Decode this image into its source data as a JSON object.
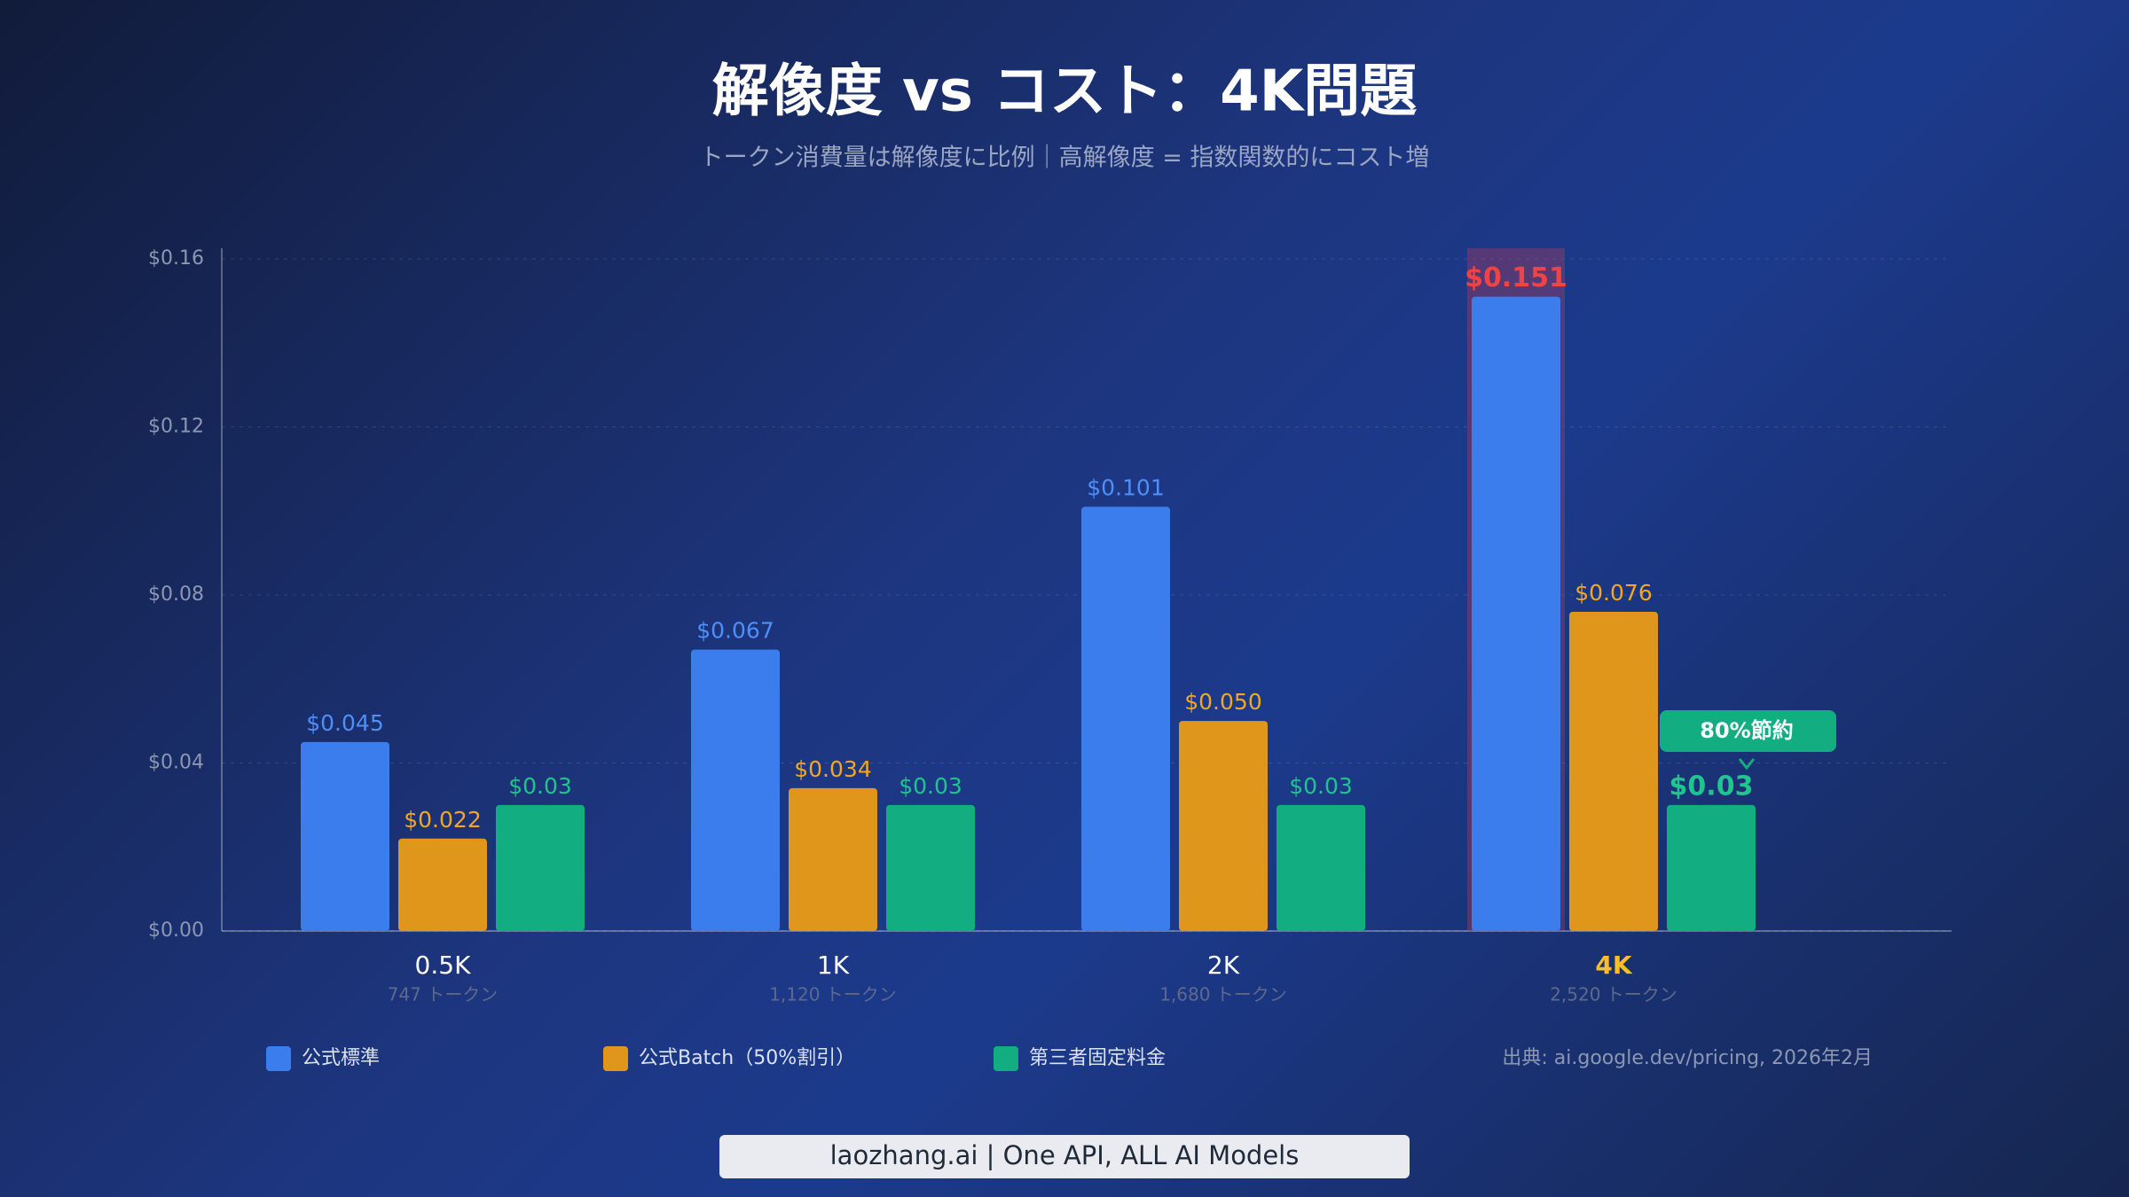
{
  "chart_data": {
    "type": "bar",
    "title": "解像度 vs コスト：4K問題",
    "subtitle": "トークン消費量は解像度に比例｜高解像度 = 指数関数的にコスト増",
    "categories": [
      "0.5K",
      "1K",
      "2K",
      "4K"
    ],
    "category_notes": [
      "747 トークン",
      "1,120 トークン",
      "1,680 トークン",
      "2,520 トークン"
    ],
    "series": [
      {
        "name": "公式標準",
        "color": "#3b7ded",
        "label_color": "#4f8ff7",
        "values": [
          0.045,
          0.067,
          0.101,
          0.151
        ],
        "value_labels": [
          "$0.045",
          "$0.067",
          "$0.101",
          "$0.151"
        ]
      },
      {
        "name": "公式Batch（50%割引）",
        "color": "#e0961a",
        "label_color": "#f5a623",
        "values": [
          0.022,
          0.034,
          0.05,
          0.076
        ],
        "value_labels": [
          "$0.022",
          "$0.034",
          "$0.050",
          "$0.076"
        ]
      },
      {
        "name": "第三者固定料金",
        "color": "#13ad82",
        "label_color": "#1fc48f",
        "values": [
          0.03,
          0.03,
          0.03,
          0.03
        ],
        "value_labels": [
          "$0.03",
          "$0.03",
          "$0.03",
          "$0.03"
        ]
      }
    ],
    "ylim": [
      0,
      0.16
    ],
    "yticks": [
      {
        "value": 0,
        "label": "$0.00"
      },
      {
        "value": 0.04,
        "label": "$0.04"
      },
      {
        "value": 0.08,
        "label": "$0.08"
      },
      {
        "value": 0.12,
        "label": "$0.12"
      },
      {
        "value": 0.16,
        "label": "$0.16"
      }
    ],
    "grid": true,
    "annotation": "80%節約",
    "source": "出典: ai.google.dev/pricing, 2026年2月",
    "footer": "laozhang.ai | One API, ALL AI Models"
  }
}
